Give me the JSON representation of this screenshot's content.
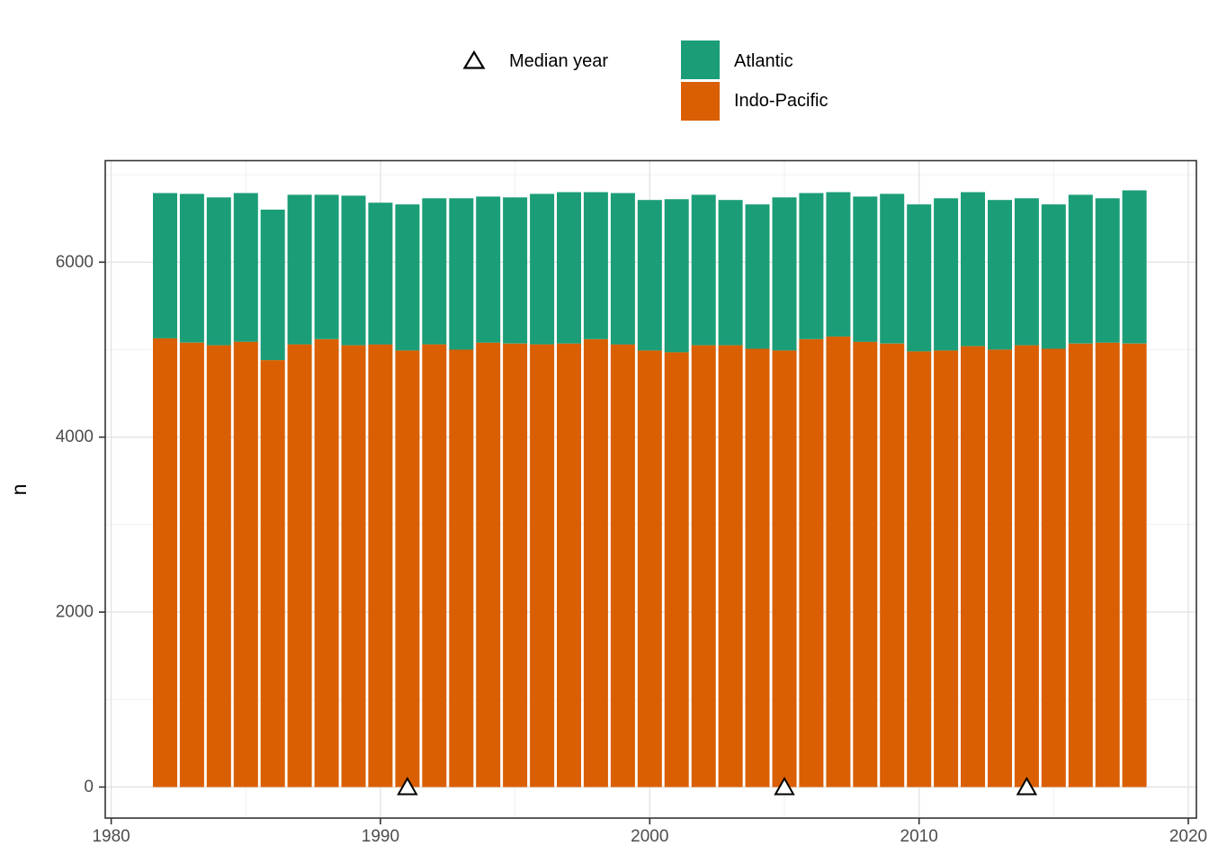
{
  "legend": {
    "median_label": "Median year",
    "series": [
      {
        "name": "Atlantic",
        "color": "#1B9E77"
      },
      {
        "name": "Indo-Pacific",
        "color": "#D95F02"
      }
    ]
  },
  "axes": {
    "y_title": "n",
    "x_ticks": [
      1980,
      1990,
      2000,
      2010,
      2020
    ],
    "x_minor": [
      1985,
      1995,
      2005,
      2015
    ],
    "y_ticks": [
      0,
      2000,
      4000,
      6000
    ],
    "y_minor": [
      1000,
      3000,
      5000,
      7000
    ],
    "tick_label_color": "#4D4D4D",
    "grid_major_color": "#E4E4E4",
    "grid_minor_color": "#F1F1F1",
    "panel_border_color": "#333333"
  },
  "chart_data": {
    "type": "bar",
    "stacked": true,
    "title": "",
    "xlabel": "",
    "ylabel": "n",
    "legend_position": "top",
    "grid": true,
    "xlim": [
      1979.78,
      2020.3
    ],
    "ylim": [
      -355,
      7160
    ],
    "x": [
      1982,
      1983,
      1984,
      1985,
      1986,
      1987,
      1988,
      1989,
      1990,
      1991,
      1992,
      1993,
      1994,
      1995,
      1996,
      1997,
      1998,
      1999,
      2000,
      2001,
      2002,
      2003,
      2004,
      2005,
      2006,
      2007,
      2008,
      2009,
      2010,
      2011,
      2012,
      2013,
      2014,
      2015,
      2016,
      2017,
      2018
    ],
    "series": [
      {
        "name": "Indo-Pacific",
        "color": "#D95F02",
        "values": [
          5130,
          5080,
          5050,
          5090,
          4880,
          5060,
          5120,
          5050,
          5060,
          4990,
          5060,
          5000,
          5080,
          5070,
          5060,
          5070,
          5120,
          5060,
          4990,
          4970,
          5050,
          5050,
          5010,
          4990,
          5120,
          5150,
          5090,
          5070,
          4980,
          4990,
          5040,
          5000,
          5050,
          5010,
          5070,
          5080,
          5070
        ]
      },
      {
        "name": "Atlantic",
        "color": "#1B9E77",
        "values": [
          1660,
          1700,
          1690,
          1700,
          1720,
          1710,
          1650,
          1710,
          1620,
          1670,
          1670,
          1730,
          1670,
          1670,
          1720,
          1730,
          1680,
          1730,
          1720,
          1750,
          1720,
          1660,
          1650,
          1750,
          1670,
          1650,
          1660,
          1710,
          1680,
          1740,
          1760,
          1710,
          1680,
          1650,
          1700,
          1650,
          1750
        ]
      }
    ],
    "median_year_markers": [
      1991,
      2005,
      2014
    ]
  }
}
